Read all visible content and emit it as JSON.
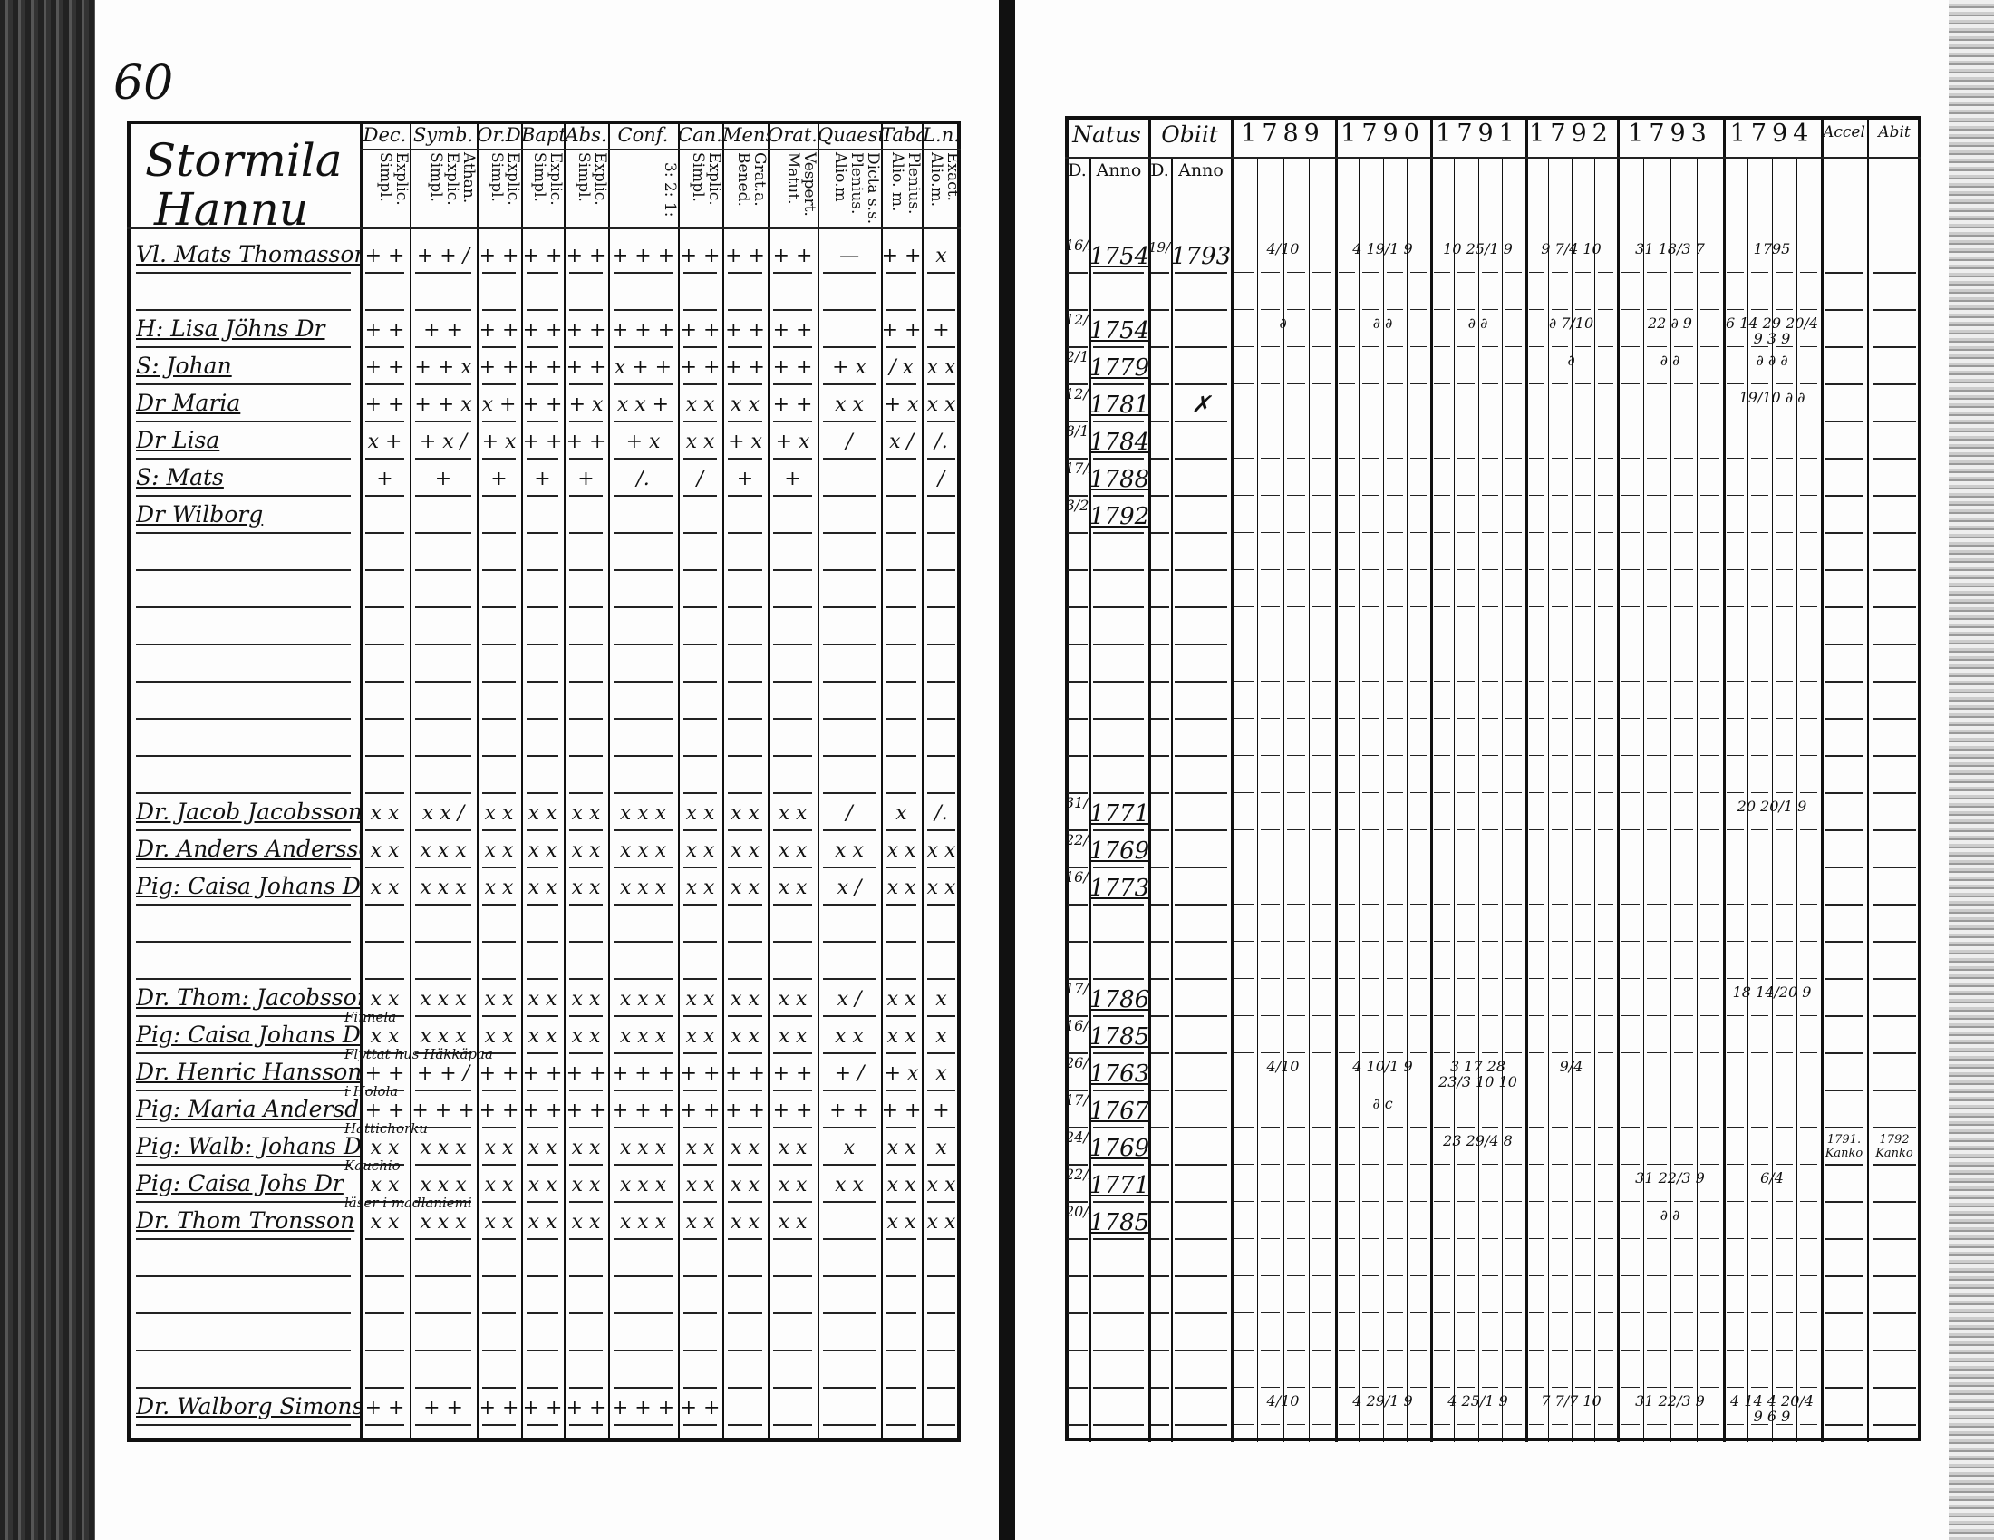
{
  "page_number": "60",
  "farm": [
    "Stormila",
    "Hannu"
  ],
  "left_headers": [
    {
      "top": "Dec.",
      "sub": "Explic. Simpl."
    },
    {
      "top": "Symb.",
      "sub": "Athan. Explic. Simpl."
    },
    {
      "top": "Or.D",
      "sub": "Explic. Simpl."
    },
    {
      "top": "Bapt.",
      "sub": "Explic. Simpl."
    },
    {
      "top": "Abs.",
      "sub": "Explic. Simpl."
    },
    {
      "top": "Conf.",
      "sub": "3: 2: 1:"
    },
    {
      "top": "Can.D",
      "sub": "Explic. Simpl."
    },
    {
      "top": "Mens.",
      "sub": "Grat.a. Bened."
    },
    {
      "top": "Orat.",
      "sub": "Vespert. Matut."
    },
    {
      "top": "Quaest",
      "sub": "Dicta s.s. Plenius. Alio.m"
    },
    {
      "top": "Tabae",
      "sub": "Plenius. Alio. m."
    },
    {
      "top": "L.n.",
      "sub": "Exact. Alio.m."
    }
  ],
  "right_headers": {
    "natus": "Natus",
    "obiit": "Obiit",
    "d": "D.",
    "anno": "Anno",
    "years": [
      "1789",
      "1790",
      "1791",
      "1792",
      "1793",
      "1794"
    ],
    "accel": "Accel",
    "abit": "Abit"
  },
  "rows": [
    {
      "name": "Vl. Mats Thomasson",
      "marks": [
        "+ +",
        "+ + /",
        "+ +",
        "+ +",
        "+ +",
        "+ + +",
        "+ +",
        "+ +",
        "+ +",
        "—",
        "+ +",
        "x"
      ],
      "nd": "16/2",
      "na": "1754",
      "od": "19/?",
      "oa": "1793",
      "years": [
        "4/10",
        "4 19/1 9",
        "10 25/1 9",
        "9 7/4 10",
        "31 18/3 7",
        "1795"
      ]
    },
    {},
    {
      "name": "H: Lisa Jöhns Dr",
      "marks": [
        "+ +",
        "+ +",
        "+ +",
        "+ +",
        "+ +",
        "+ + +",
        "+ +",
        "+ +",
        "+ +",
        "",
        "+ +",
        "+"
      ],
      "nd": "12/1",
      "na": "1754",
      "years": [
        "∂",
        "∂ ∂",
        "∂ ∂",
        "∂ 7/10",
        "22 ∂ 9",
        "6 14 29 20/4 9 3 9"
      ]
    },
    {
      "name": "S: Johan",
      "marks": [
        "+ +",
        "+ + x",
        "+ +",
        "+ +",
        "+ +",
        "x + +",
        "+ +",
        "+ +",
        "+ +",
        "+ x",
        "/ x",
        "x x"
      ],
      "nd": "2/1",
      "na": "1779",
      "years": [
        "",
        "",
        "",
        "∂",
        "∂ ∂",
        "∂ ∂ ∂"
      ]
    },
    {
      "name": "Dr Maria",
      "marks": [
        "+ +",
        "+ + x",
        "x +",
        "+ +",
        "+ x",
        "x x +",
        "x x",
        "x x",
        "+ +",
        "x x",
        "+ x",
        "x x"
      ],
      "nd": "12/6",
      "na": "1781",
      "oa": "✗",
      "years": [
        "",
        "",
        "",
        "",
        "",
        "19/10 ∂ ∂"
      ]
    },
    {
      "name": "Dr Lisa",
      "marks": [
        "x +",
        "+ x /",
        "+ x",
        "+ +",
        "+ +",
        "+ x",
        "x x",
        "+ x",
        "+ x",
        "/",
        "x /",
        "/."
      ],
      "nd": "8/1",
      "na": "1784"
    },
    {
      "name": "S: Mats",
      "marks": [
        "+",
        "+",
        "+",
        "+",
        "+",
        "/.",
        "/",
        "+",
        "+",
        "",
        "",
        "/"
      ],
      "nd": "17/2",
      "na": "1788"
    },
    {
      "name": "Dr Wilborg",
      "nd": "3/2",
      "na": "1792"
    },
    {},
    {},
    {},
    {},
    {},
    {},
    {},
    {
      "name": "Dr. Jacob Jacobsson",
      "marks": [
        "x x",
        "x x /",
        "x x",
        "x x",
        "x x",
        "x x x",
        "x x",
        "x x",
        "x x",
        "/",
        "x",
        "/."
      ],
      "nd": "31/8",
      "na": "1771",
      "years": [
        "",
        "",
        "",
        "",
        "",
        "20 20/1 9"
      ]
    },
    {
      "name": "Dr. Anders Andersson",
      "marks": [
        "x x",
        "x x x",
        "x x",
        "x x",
        "x x",
        "x x x",
        "x x",
        "x x",
        "x x",
        "x x",
        "x x",
        "x x"
      ],
      "nd": "22/4",
      "na": "1769"
    },
    {
      "name": "Pig: Caisa Johans Dr",
      "marks": [
        "x x",
        "x x x",
        "x x",
        "x x",
        "x x",
        "x x x",
        "x x",
        "x x",
        "x x",
        "x /",
        "x x",
        "x x"
      ],
      "nd": "16/12",
      "na": "1773"
    },
    {},
    {},
    {
      "name": "Dr. Thom: Jacobsson",
      "marks": [
        "x x",
        "x x x",
        "x x",
        "x x",
        "x x",
        "x x x",
        "x x",
        "x x",
        "x x",
        "x /",
        "x x",
        "x"
      ],
      "nd": "17/3",
      "na": "1786",
      "years": [
        "",
        "",
        "",
        "",
        "",
        "18 14/20 9"
      ]
    },
    {
      "name": "Pig: Caisa Johans Dr",
      "marks": [
        "x x",
        "x x x",
        "x x",
        "x x",
        "x x",
        "x x x",
        "x x",
        "x x",
        "x x",
        "x x",
        "x x",
        "x"
      ],
      "nd": "16/4",
      "na": "1785",
      "note": "Finnela"
    },
    {
      "name": "Dr. Henric Hansson",
      "marks": [
        "+ +",
        "+ + /",
        "+ +",
        "+ +",
        "+ +",
        "+ + +",
        "+ +",
        "+ +",
        "+ +",
        "+ /",
        "+ x",
        "x"
      ],
      "nd": "26/1",
      "na": "1763",
      "note": "Flyttat hus Häkkäpaa",
      "years": [
        "4/10",
        "4 10/1 9",
        "3 17 28 23/3 10 10",
        "9/4",
        "",
        ""
      ]
    },
    {
      "name": "Pig: Maria Andersdr",
      "marks": [
        "+ +",
        "+ + +",
        "+ +",
        "+ +",
        "+ +",
        "+ + +",
        "+ +",
        "+ +",
        "+ +",
        "+ +",
        "+ +",
        "+"
      ],
      "nd": "17/6",
      "na": "1767",
      "note": "i Holola",
      "years": [
        "",
        "∂ c",
        "",
        "",
        "",
        ""
      ]
    },
    {
      "name": "Pig: Walb: Johans Dr",
      "marks": [
        "x x",
        "x x x",
        "x x",
        "x x",
        "x x",
        "x x x",
        "x x",
        "x x",
        "x x",
        "x",
        "x x",
        "x"
      ],
      "nd": "24/3",
      "na": "1769",
      "note": "Hattichorku",
      "years": [
        "",
        "",
        "23 29/4 8",
        "",
        "",
        ""
      ],
      "accel": "1791. Kanko",
      "abit": "1792 Kanko"
    },
    {
      "name": "Pig: Caisa Johs Dr",
      "marks": [
        "x x",
        "x x x",
        "x x",
        "x x",
        "x x",
        "x x x",
        "x x",
        "x x",
        "x x",
        "x x",
        "x x",
        "x x"
      ],
      "nd": "22/24",
      "na": "1771",
      "note": "Kauchio",
      "years": [
        "",
        "",
        "",
        "",
        "31 22/3 9",
        "6/4"
      ]
    },
    {
      "name": "Dr. Thom Tronsson",
      "marks": [
        "x x",
        "x x x",
        "x x",
        "x x",
        "x x",
        "x x x",
        "x x",
        "x x",
        "x x",
        "",
        "x x",
        "x x"
      ],
      "nd": "20/4",
      "na": "1785",
      "note": "läser i madlaniemi",
      "years": [
        "",
        "",
        "",
        "",
        "∂ ∂",
        ""
      ]
    },
    {},
    {},
    {},
    {},
    {
      "name": "Dr. Walborg Simons Dr",
      "marks": [
        "+ +",
        "+ +",
        "+ +",
        "+ +",
        "+ +",
        "+ + +",
        "+ +",
        "",
        "",
        "",
        "",
        ""
      ],
      "years": [
        "4/10",
        "4 29/1 9",
        "4 25/1 9",
        "7 7/7 10",
        "31 22/3 9",
        "4 14 4 20/4 9 6 9"
      ]
    }
  ]
}
